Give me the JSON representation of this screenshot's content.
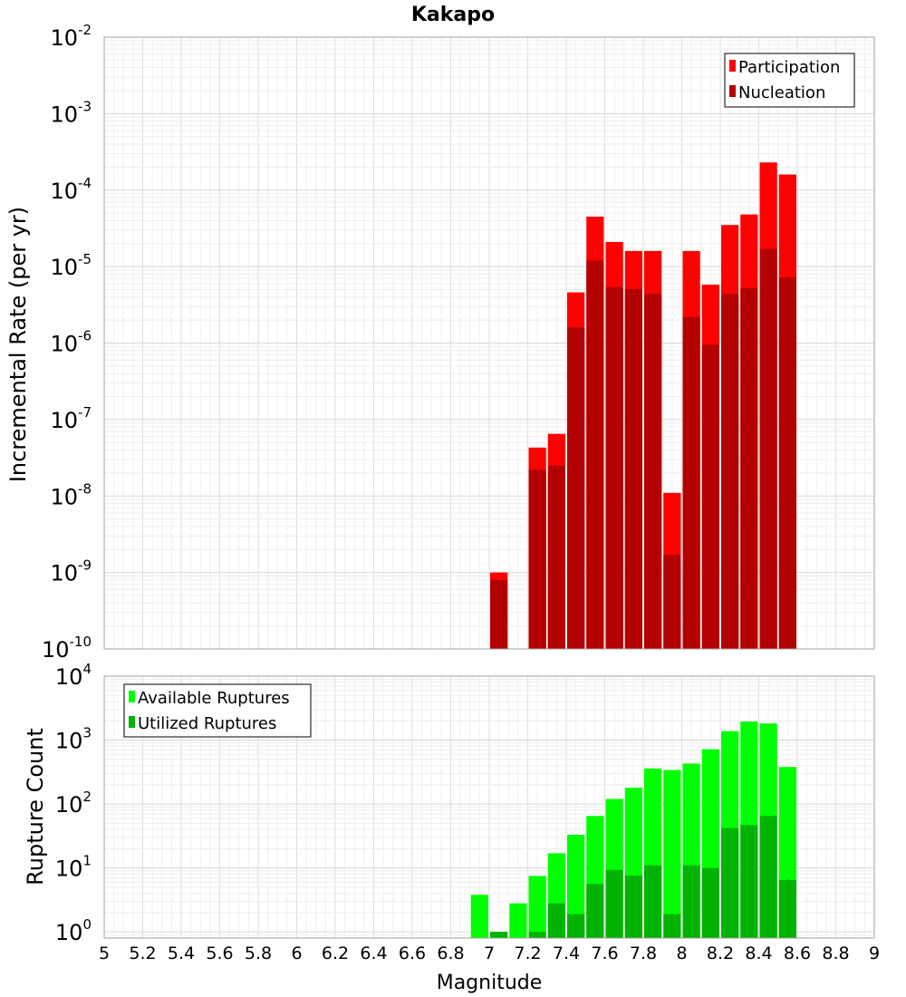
{
  "chart_data": [
    {
      "type": "bar",
      "title": "Kakapo",
      "xlabel": "",
      "ylabel": "Incremental Rate (per yr)",
      "yscale": "log",
      "xlim": [
        5,
        9
      ],
      "ylim": [
        1e-10,
        0.01
      ],
      "y_tick_exponents": [
        -10,
        -9,
        -8,
        -7,
        -6,
        -5,
        -4,
        -3,
        -2
      ],
      "grid": true,
      "legend_position": "top-right",
      "bar_width": 0.1,
      "x": [
        7.05,
        7.25,
        7.35,
        7.45,
        7.55,
        7.65,
        7.75,
        7.85,
        7.95,
        8.05,
        8.15,
        8.25,
        8.35,
        8.45,
        8.55
      ],
      "series": [
        {
          "name": "Participation",
          "color": "#ff0000",
          "values": [
            1e-09,
            4.3e-08,
            6.5e-08,
            4.6e-06,
            4.5e-05,
            2.1e-05,
            1.6e-05,
            1.6e-05,
            1.1e-08,
            1.6e-05,
            5.8e-06,
            3.5e-05,
            4.8e-05,
            0.00023,
            0.00016
          ]
        },
        {
          "name": "Nucleation",
          "color": "#b30000",
          "values": [
            8e-10,
            2.2e-08,
            2.5e-08,
            1.6e-06,
            1.2e-05,
            5.4e-06,
            5.1e-06,
            4.4e-06,
            1.7e-09,
            2.2e-06,
            9.5e-07,
            4.4e-06,
            5.2e-06,
            1.7e-05,
            7.2e-06
          ]
        }
      ]
    },
    {
      "type": "bar",
      "title": "",
      "xlabel": "Magnitude",
      "ylabel": "Rupture Count",
      "yscale": "log",
      "xlim": [
        5,
        9
      ],
      "ylim": [
        0.8,
        10000
      ],
      "y_tick_exponents": [
        0,
        1,
        2,
        3,
        4
      ],
      "x_tick_labels": [
        "5",
        "5.2",
        "5.4",
        "5.6",
        "5.8",
        "6",
        "6.2",
        "6.4",
        "6.6",
        "6.8",
        "7",
        "7.2",
        "7.4",
        "7.6",
        "7.8",
        "8",
        "8.2",
        "8.4",
        "8.6",
        "8.8",
        "9"
      ],
      "grid": true,
      "legend_position": "top-left",
      "bar_width": 0.1,
      "x": [
        6.95,
        7.05,
        7.15,
        7.25,
        7.35,
        7.45,
        7.55,
        7.65,
        7.75,
        7.85,
        7.95,
        8.05,
        8.15,
        8.25,
        8.35,
        8.45,
        8.55
      ],
      "series": [
        {
          "name": "Available Ruptures",
          "color": "#00ff00",
          "values": [
            3.8,
            0,
            2.8,
            7.5,
            17,
            33,
            65,
            120,
            180,
            360,
            340,
            430,
            720,
            1380,
            1950,
            1820,
            380
          ]
        },
        {
          "name": "Utilized Ruptures",
          "color": "#00b300",
          "values": [
            0,
            1,
            0,
            1,
            2.8,
            1.9,
            5.6,
            9.3,
            7.6,
            11,
            1.9,
            11,
            10,
            42,
            47,
            65,
            6.5
          ]
        }
      ]
    }
  ]
}
